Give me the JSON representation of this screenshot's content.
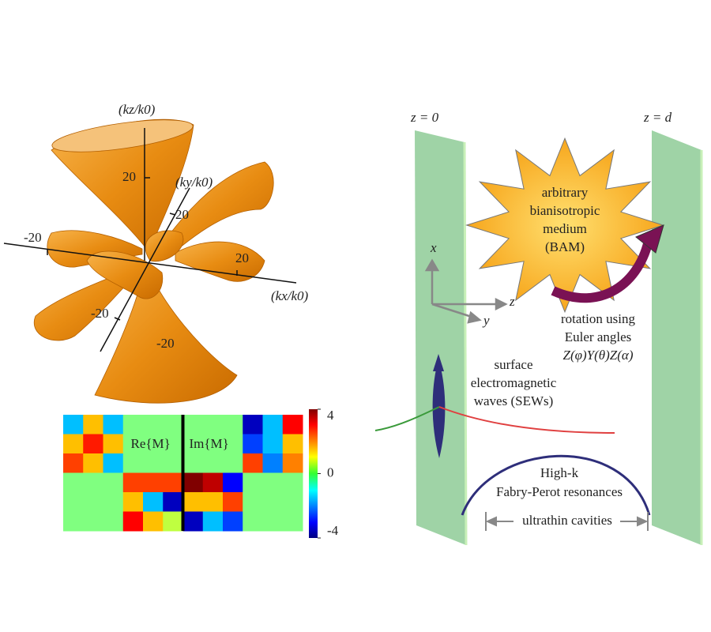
{
  "left": {
    "axis_labels": {
      "kz": "(kz/k0)",
      "ky": "(ky/k0)",
      "kx": "(kx/k0)"
    },
    "ticks": {
      "kz_pos": "20",
      "ky_pos": "20",
      "kx_neg": "-20",
      "kx_pos": "20",
      "ky_neg": "-20",
      "kz_neg": "-20"
    }
  },
  "heatmap": {
    "labels": {
      "re": "Re{M}",
      "im": "Im{M}"
    },
    "values": [
      [
        -1.5,
        1.5,
        -1.5,
        0,
        0,
        0,
        0,
        0,
        0,
        -3.5,
        -1.5,
        3
      ],
      [
        1.5,
        2.8,
        1.5,
        0,
        0,
        0,
        0,
        0,
        0,
        -2.5,
        -1.5,
        1.5
      ],
      [
        2.5,
        1.5,
        -1.5,
        0,
        0,
        0,
        0,
        0,
        0,
        2.5,
        -2,
        2
      ],
      [
        0,
        0,
        0,
        2.5,
        2.5,
        2.5,
        4,
        3.5,
        -3,
        0,
        0,
        0
      ],
      [
        0,
        0,
        0,
        1.5,
        -1.5,
        -3.5,
        1.5,
        1.5,
        2.5,
        0,
        0,
        0
      ],
      [
        0,
        0,
        0,
        3,
        1.5,
        0.5,
        -3.5,
        -1.5,
        -2.5,
        0,
        0,
        0
      ]
    ],
    "clim": [
      -4,
      4
    ],
    "ticks": [
      4,
      0,
      -4
    ]
  },
  "right": {
    "plate_left": "z = 0",
    "plate_right": "z = d",
    "bam": [
      "arbitrary",
      "bianisotropic",
      "medium",
      "(BAM)"
    ],
    "axes": {
      "x": "x",
      "y": "y",
      "z": "z"
    },
    "rotation": [
      "rotation using",
      "Euler angles",
      "Z(φ)Y(θ)Z(α)"
    ],
    "sew": [
      "surface",
      "electromagnetic",
      "waves (SEWs)"
    ],
    "resonance": [
      "High-k",
      "Fabry-Perot resonances"
    ],
    "cavity": "ultrathin cavities"
  }
}
